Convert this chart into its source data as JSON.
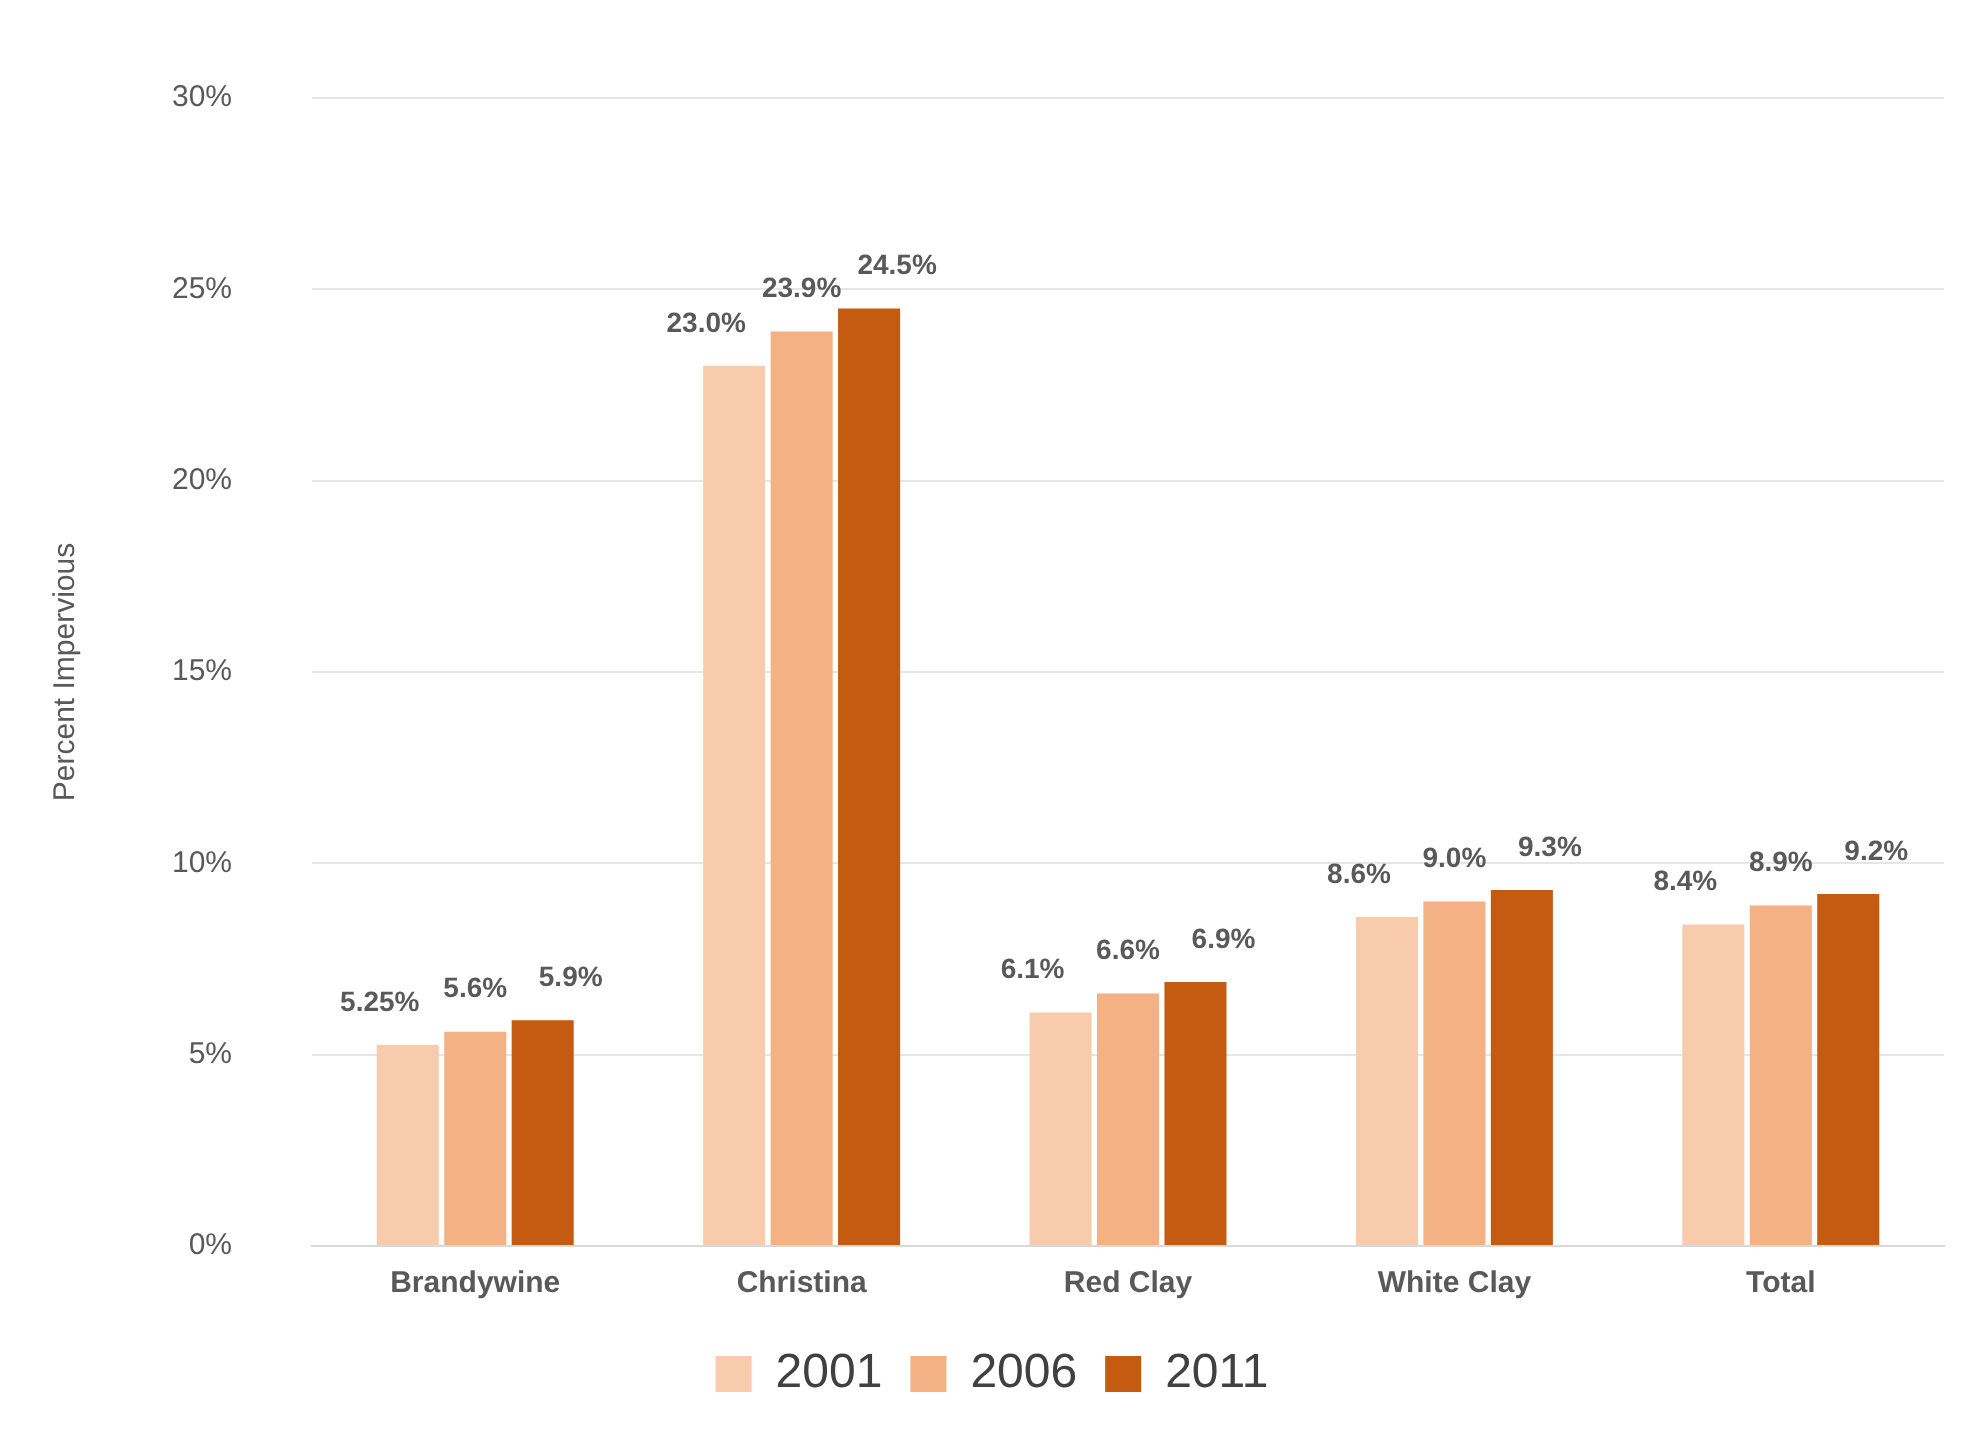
{
  "chart_data": {
    "type": "bar",
    "ylabel": "Percent Impervious",
    "categories": [
      "Brandywine",
      "Christina",
      "Red Clay",
      "White Clay",
      "Total"
    ],
    "series": [
      {
        "name": "2001",
        "color": "#f8cbad",
        "values": [
          5.25,
          23.0,
          6.1,
          8.6,
          8.4
        ],
        "value_labels": [
          "5.25%",
          "23.0%",
          "6.1%",
          "8.6%",
          "8.4%"
        ]
      },
      {
        "name": "2006",
        "color": "#f4b183",
        "values": [
          5.6,
          23.9,
          6.6,
          9.0,
          8.9
        ],
        "value_labels": [
          "5.6%",
          "23.9%",
          "6.6%",
          "9.0%",
          "8.9%"
        ]
      },
      {
        "name": "2011",
        "color": "#c55a11",
        "values": [
          5.9,
          24.5,
          6.9,
          9.3,
          9.2
        ],
        "value_labels": [
          "5.9%",
          "24.5%",
          "6.9%",
          "9.3%",
          "9.2%"
        ]
      }
    ],
    "ylim": [
      0,
      30
    ],
    "yticks": [
      {
        "value": 0,
        "label": "0%"
      },
      {
        "value": 5,
        "label": "5%"
      },
      {
        "value": 10,
        "label": "10%"
      },
      {
        "value": 15,
        "label": "15%"
      },
      {
        "value": 20,
        "label": "20%"
      },
      {
        "value": 25,
        "label": "25%"
      },
      {
        "value": 30,
        "label": "30%"
      }
    ],
    "grid": "y",
    "legend": "bottom"
  }
}
